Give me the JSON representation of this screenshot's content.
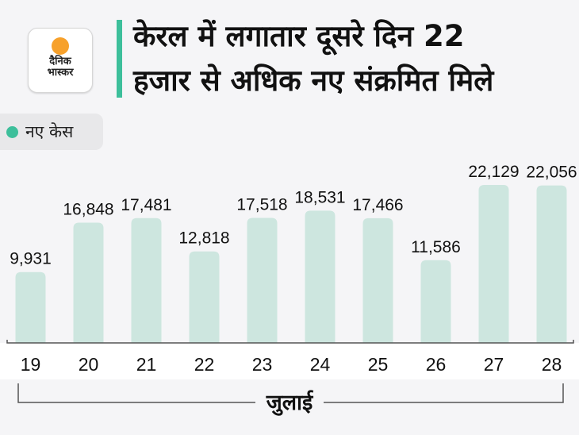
{
  "logo": {
    "line1": "दैनिक",
    "line2": "भास्कर"
  },
  "title": {
    "line1": "केरल में लगातार दूसरे दिन 22",
    "line2": "हजार से अधिक नए संक्रमित मिले"
  },
  "colors": {
    "accent": "#3dbf9b",
    "bar": "#cde6df"
  },
  "chart_data": {
    "type": "bar",
    "title": "केरल में लगातार दूसरे दिन 22 हजार से अधिक नए संक्रमित मिले",
    "legend": [
      "नए केस"
    ],
    "categories": [
      "19",
      "20",
      "21",
      "22",
      "23",
      "24",
      "25",
      "26",
      "27",
      "28"
    ],
    "values": [
      9931,
      16848,
      17481,
      12818,
      17518,
      18531,
      17466,
      11586,
      22129,
      22056
    ],
    "value_labels": [
      "9,931",
      "16,848",
      "17,481",
      "12,818",
      "17,518",
      "18,531",
      "17,466",
      "11,586",
      "22,129",
      "22,056"
    ],
    "xlabel": "जुलाई",
    "ylabel": "",
    "ylim": [
      0,
      24000
    ],
    "grid": false
  }
}
